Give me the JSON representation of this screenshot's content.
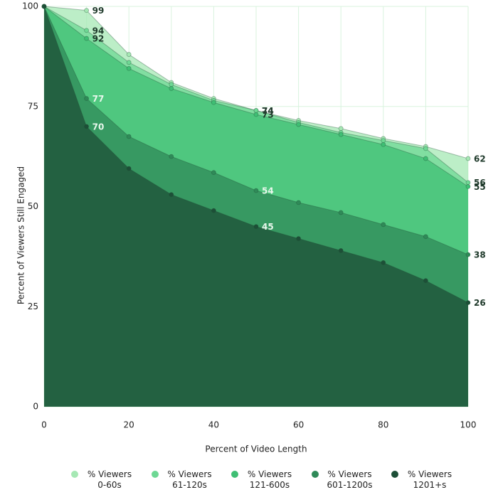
{
  "chart_data": {
    "type": "area",
    "x_label": "Percent of Video Length",
    "y_label": "Percent of Viewers Still Engaged",
    "x": [
      0,
      10,
      20,
      30,
      40,
      50,
      60,
      70,
      80,
      90,
      100
    ],
    "xlim": [
      0,
      100
    ],
    "xticks": [
      0,
      20,
      40,
      60,
      80,
      100
    ],
    "ylim": [
      0,
      100
    ],
    "yticks": [
      0,
      25,
      50,
      75,
      100
    ],
    "grid": true,
    "labeled_x": [
      10,
      50,
      100
    ],
    "series": [
      {
        "name": "% Viewers 0-60s",
        "color": "#a6e8b4",
        "values": [
          100,
          99,
          88,
          81,
          77,
          74,
          71.5,
          69.5,
          67,
          65,
          62
        ]
      },
      {
        "name": "% Viewers 61-120s",
        "color": "#6ed894",
        "values": [
          100,
          94,
          86,
          80.5,
          76.5,
          74,
          71,
          68.5,
          66.5,
          64.5,
          56
        ]
      },
      {
        "name": "% Viewers 121-600s",
        "color": "#3fbf74",
        "values": [
          100,
          92,
          84.5,
          79.5,
          76,
          73,
          70.5,
          68,
          65.5,
          62,
          55
        ]
      },
      {
        "name": "% Viewers 601-1200s",
        "color": "#2f8a58",
        "values": [
          100,
          77,
          67.5,
          62.5,
          58.5,
          54,
          51,
          48.5,
          45.5,
          42.5,
          38
        ]
      },
      {
        "name": "% Viewers 1201+s",
        "color": "#1d4f37",
        "values": [
          100,
          70,
          59.5,
          53,
          49,
          45,
          42,
          39,
          36,
          31.5,
          26
        ]
      }
    ]
  }
}
